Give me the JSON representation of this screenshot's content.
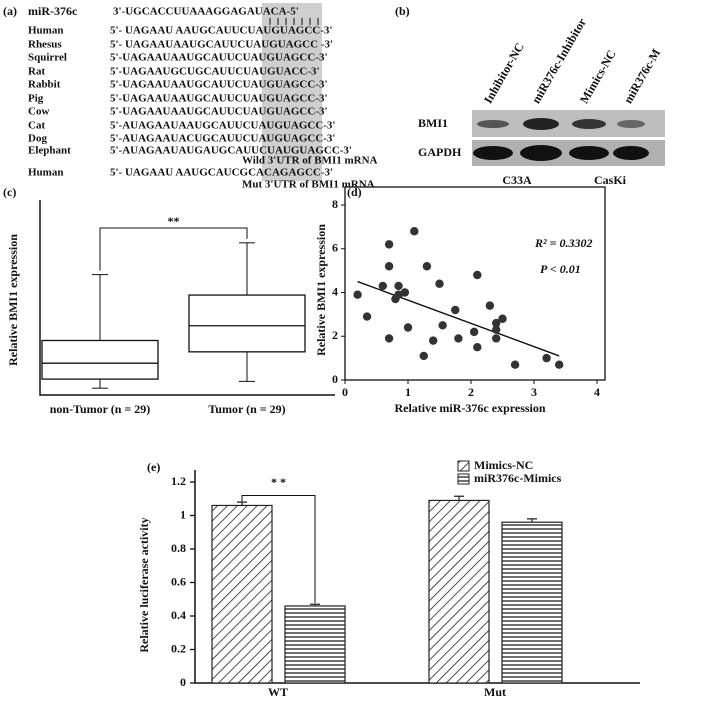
{
  "panel_labels": [
    "(a)",
    "(b)",
    "(c)",
    "(d)",
    "(e)"
  ],
  "alignment": {
    "mirna": {
      "name": "miR-376c",
      "sequence": "3'-UGCACCUUAAAGGAGAUACA-5'"
    },
    "rows": [
      {
        "species": "Human",
        "sequence": "5'- UAGAAU AAUGCAUUCUAUGUAGCC-3'"
      },
      {
        "species": "Rhesus",
        "sequence": "5'- UAGAAUAAUGCAUUCUAUGUAGCC -3'"
      },
      {
        "species": "Squirrel",
        "sequence": "5'-UAGAAUAAUGCAUUCUAUGUAGCC-3'"
      },
      {
        "species": "Rat",
        "sequence": "5'-UAGAAUGCUGCAUUCUAUGUACC-3'"
      },
      {
        "species": "Rabbit",
        "sequence": "5'-UAGAAUAAUGCAUUCUAUGUAGCC-3'"
      },
      {
        "species": "Pig",
        "sequence": "5'-UAGAAUAAUGCAUUCUAUGUAGCC-3'"
      },
      {
        "species": "Cow",
        "sequence": "5'-UAGAAUAAUGCAUUCUAUGUAGCC-3'"
      },
      {
        "species": "Cat",
        "sequence": "5'-AUAGAAUAAUGCAUUCUAUGUAGCC-3'"
      },
      {
        "species": "Dog",
        "sequence": "5'-AUAGAAUACUGCAUUCUAUGUAGCC-3'"
      },
      {
        "species": "Elephant",
        "sequence": "5'-AUAGAAUAUGAUGCAUUCUAUGUAGCC-3'"
      }
    ],
    "wild_caption": "Wild 3'UTR of BMI1 mRNA",
    "mutant": {
      "species": "Human",
      "sequence": "5'- UAGAAU AAUGCAUCGCACAGAGCC-3'"
    },
    "mut_caption": "Mut 3'UTR of BMI1 mRNA"
  },
  "blot": {
    "lanes": [
      "Inhibitor-NC",
      "miR376c-Inhibitor",
      "Mimics-NC",
      "miR376c-M"
    ],
    "rows": [
      "BMI1",
      "GAPDH"
    ],
    "groups": [
      "C33A",
      "CasKi"
    ]
  },
  "chart_data": [
    {
      "type": "box",
      "annotation": "**",
      "ylabel": "Relative BMI1 expression",
      "categories": [
        "non-Tumor (n = 29)",
        "Tumor (n = 29)"
      ],
      "min": [
        0.3,
        0.6
      ],
      "q1": [
        0.7,
        1.9
      ],
      "median": [
        1.4,
        3.05
      ],
      "q3": [
        2.4,
        4.4
      ],
      "max": [
        5.3,
        6.7
      ],
      "ylim": [
        0,
        7
      ]
    },
    {
      "type": "scatter",
      "xlabel": "Relative miR-376c expression",
      "ylabel": "Relative BMI1 expression",
      "x": [
        0.2,
        0.35,
        0.6,
        0.7,
        0.7,
        0.7,
        0.8,
        0.85,
        0.85,
        0.95,
        1.0,
        1.1,
        1.25,
        1.3,
        1.4,
        1.5,
        1.55,
        1.75,
        1.8,
        2.05,
        2.1,
        2.1,
        2.3,
        2.4,
        2.4,
        2.4,
        2.5,
        2.7,
        3.2,
        3.4
      ],
      "values": [
        3.9,
        2.9,
        4.3,
        6.2,
        5.2,
        1.9,
        3.7,
        4.3,
        3.9,
        4.0,
        2.4,
        6.8,
        1.1,
        5.2,
        1.8,
        4.4,
        2.5,
        3.2,
        1.9,
        2.2,
        4.8,
        1.5,
        3.4,
        2.3,
        1.9,
        2.6,
        2.8,
        0.7,
        1.0,
        0.7
      ],
      "color": "#333333",
      "trendline": {
        "x": [
          0.2,
          3.4
        ],
        "y": [
          4.5,
          1.1
        ]
      },
      "annotations": [
        "R² = 0.3302",
        "P < 0.01"
      ],
      "xlim": [
        0,
        4
      ],
      "ylim": [
        0,
        8
      ],
      "xticks": [
        0,
        1,
        2,
        3,
        4
      ],
      "yticks": [
        0,
        2,
        4,
        6,
        8
      ]
    },
    {
      "type": "bar",
      "ylabel": "Relative luciferase activity",
      "annotation": "* *",
      "categories": [
        "WT",
        "Mut"
      ],
      "series": [
        {
          "name": "Mimics-NC",
          "pattern": "diagonal",
          "color": "#222222",
          "values": [
            1.06,
            1.09
          ],
          "errors": [
            0.02,
            0.025
          ]
        },
        {
          "name": "miR376c-Mimics",
          "pattern": "horizontal",
          "color": "#222222",
          "values": [
            0.46,
            0.96
          ],
          "errors": [
            0.01,
            0.02
          ]
        }
      ],
      "ylim": [
        0,
        1.2
      ],
      "yticks": [
        0,
        0.2,
        0.4,
        0.6,
        0.8,
        1,
        1.2
      ],
      "legend": "top"
    }
  ]
}
